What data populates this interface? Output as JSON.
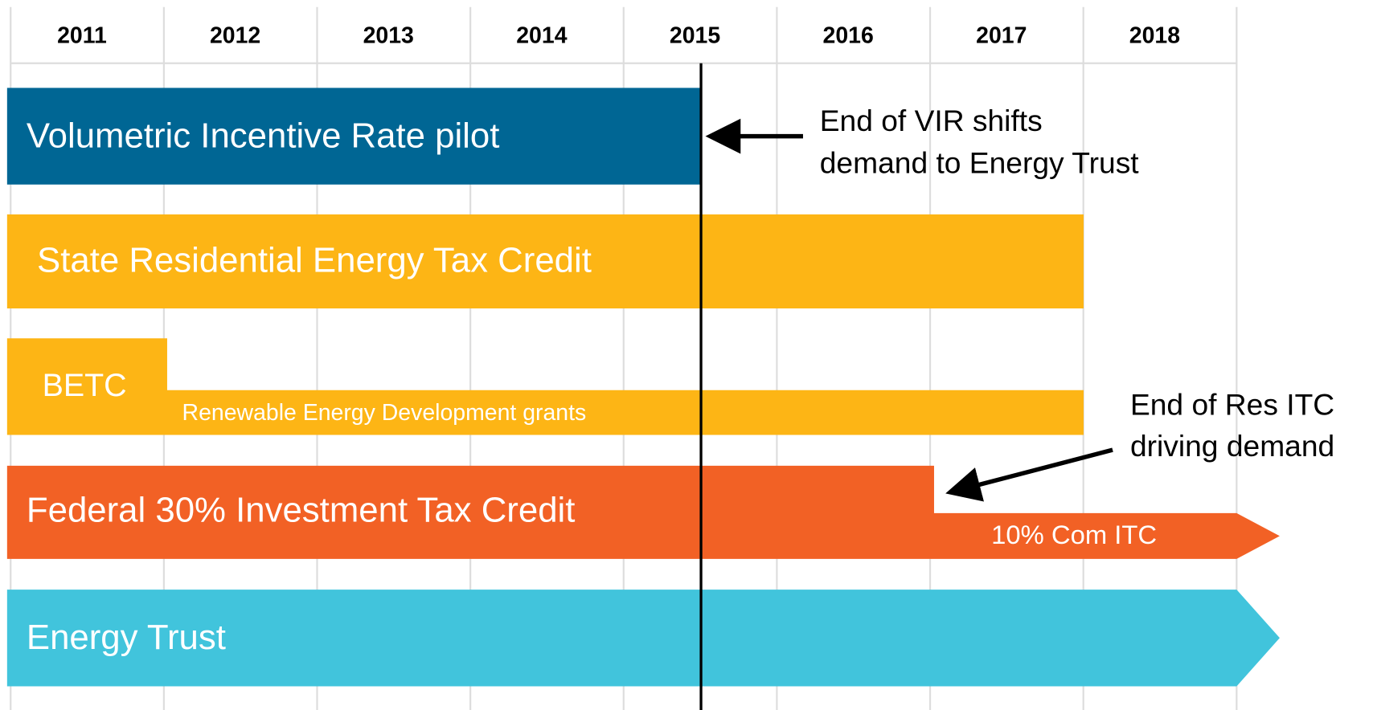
{
  "years": [
    "2011",
    "2012",
    "2013",
    "2014",
    "2015",
    "2016",
    "2017",
    "2018"
  ],
  "bars": [
    {
      "label": "Volumetric Incentive Rate pilot"
    },
    {
      "label": "State Residential Energy Tax Credit"
    },
    {
      "label": "BETC",
      "sublabel": "Renewable Energy Development grants"
    },
    {
      "label": "Federal 30% Investment Tax Credit",
      "sublabel": "10% Com ITC"
    },
    {
      "label": "Energy Trust"
    }
  ],
  "annotations": [
    {
      "lines": [
        "End of VIR shifts",
        "demand to Energy Trust"
      ]
    },
    {
      "lines": [
        "End of Res ITC",
        "driving demand"
      ]
    }
  ]
}
